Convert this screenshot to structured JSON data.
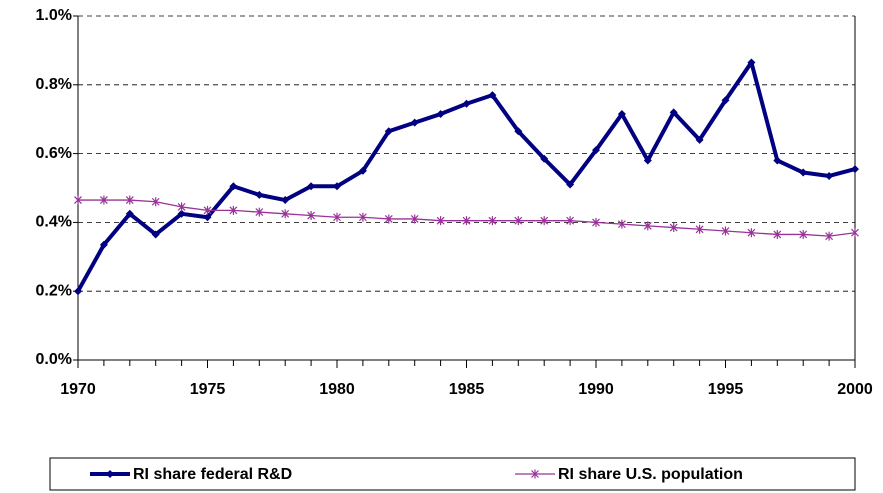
{
  "chart_data": {
    "type": "line",
    "x": [
      1970,
      1971,
      1972,
      1973,
      1974,
      1975,
      1976,
      1977,
      1978,
      1979,
      1980,
      1981,
      1982,
      1983,
      1984,
      1985,
      1986,
      1987,
      1988,
      1989,
      1990,
      1991,
      1992,
      1993,
      1994,
      1995,
      1996,
      1997,
      1998,
      1999,
      2000
    ],
    "series": [
      {
        "name": "RI share federal R&D",
        "color": "#000080",
        "marker": "diamond",
        "values": [
          0.2,
          0.335,
          0.425,
          0.365,
          0.425,
          0.415,
          0.505,
          0.48,
          0.465,
          0.505,
          0.505,
          0.55,
          0.665,
          0.69,
          0.715,
          0.745,
          0.77,
          0.665,
          0.585,
          0.51,
          0.61,
          0.715,
          0.58,
          0.72,
          0.64,
          0.755,
          0.865,
          0.58,
          0.545,
          0.535,
          0.555
        ]
      },
      {
        "name": "RI share U.S. population",
        "color": "#993399",
        "marker": "star",
        "values": [
          0.465,
          0.465,
          0.465,
          0.46,
          0.445,
          0.435,
          0.435,
          0.43,
          0.425,
          0.42,
          0.415,
          0.415,
          0.41,
          0.41,
          0.405,
          0.405,
          0.405,
          0.405,
          0.405,
          0.405,
          0.4,
          0.395,
          0.39,
          0.385,
          0.38,
          0.375,
          0.37,
          0.365,
          0.365,
          0.36,
          0.37
        ]
      }
    ],
    "xlim": [
      1970,
      2000
    ],
    "xticks": [
      1970,
      1975,
      1980,
      1985,
      1990,
      1995,
      2000
    ],
    "ylim": [
      0,
      1.0
    ],
    "yticks": [
      {
        "value": 0,
        "label": "0.0%"
      },
      {
        "value": 0.2,
        "label": "0.2%"
      },
      {
        "value": 0.4,
        "label": "0.4%"
      },
      {
        "value": 0.6,
        "label": "0.6%"
      },
      {
        "value": 0.8,
        "label": "0.8%"
      },
      {
        "value": 1.0,
        "label": "1.0%"
      }
    ],
    "grid": true,
    "legend": "bottom"
  }
}
